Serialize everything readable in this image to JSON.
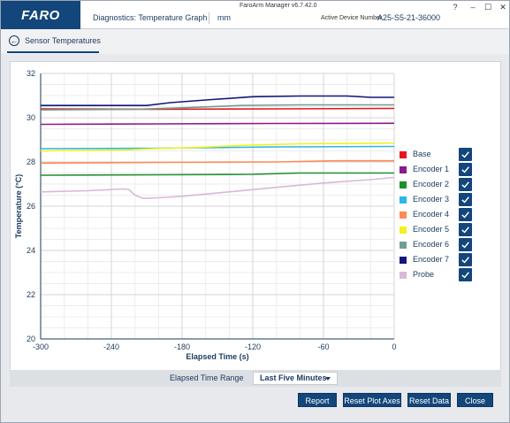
{
  "window": {
    "logo": "FARO",
    "app_title": "FaroArm Manager v6.7.42.0",
    "page_name": "Diagnostics: Temperature Graph",
    "unit": "mm",
    "device_label": "Active Device Number",
    "device_number": "A25-S5-21-36000",
    "help": "?",
    "minimize": "–",
    "maximize": "☐",
    "close": "✕"
  },
  "nav": {
    "back_icon": "←",
    "label": "Sensor Temperatures"
  },
  "range": {
    "label": "Elapsed Time Range",
    "selected": "Last Five Minutes"
  },
  "buttons": {
    "report": "Report",
    "reset_plot_axes": "Reset Plot Axes",
    "reset_data": "Reset Data",
    "close": "Close"
  },
  "legend": [
    {
      "label": "Base",
      "color": "#e8141c",
      "checked": true
    },
    {
      "label": "Encoder 1",
      "color": "#8b1a8b",
      "checked": true
    },
    {
      "label": "Encoder 2",
      "color": "#1f8f2c",
      "checked": true
    },
    {
      "label": "Encoder 3",
      "color": "#2ab8e8",
      "checked": true
    },
    {
      "label": "Encoder 4",
      "color": "#ff8a55",
      "checked": true
    },
    {
      "label": "Encoder 5",
      "color": "#f2f21e",
      "checked": true
    },
    {
      "label": "Encoder 6",
      "color": "#6e9e96",
      "checked": true
    },
    {
      "label": "Encoder 7",
      "color": "#16167a",
      "checked": true
    },
    {
      "label": "Probe",
      "color": "#d9b8d9",
      "checked": true
    }
  ],
  "chart_data": {
    "type": "line",
    "xlabel": "Elapsed Time (s)",
    "ylabel": "Temperature (°C)",
    "xlim": [
      -300,
      0
    ],
    "ylim": [
      20,
      32
    ],
    "xticks": [
      -300,
      -240,
      -180,
      -120,
      -60,
      0
    ],
    "yticks": [
      20,
      22,
      24,
      26,
      28,
      30,
      32
    ],
    "grid": true,
    "legend_position": "right",
    "series": [
      {
        "name": "Base",
        "color": "#e8141c",
        "points": [
          [
            -300,
            30.4
          ],
          [
            -200,
            30.38
          ],
          [
            -100,
            30.4
          ],
          [
            0,
            30.42
          ]
        ]
      },
      {
        "name": "Encoder 1",
        "color": "#8b1a8b",
        "points": [
          [
            -300,
            29.7
          ],
          [
            -200,
            29.72
          ],
          [
            -100,
            29.74
          ],
          [
            0,
            29.75
          ]
        ]
      },
      {
        "name": "Encoder 2",
        "color": "#1f8f2c",
        "points": [
          [
            -300,
            27.4
          ],
          [
            -200,
            27.42
          ],
          [
            -120,
            27.44
          ],
          [
            -80,
            27.5
          ],
          [
            0,
            27.5
          ]
        ]
      },
      {
        "name": "Encoder 3",
        "color": "#2ab8e8",
        "points": [
          [
            -300,
            28.6
          ],
          [
            -200,
            28.62
          ],
          [
            -100,
            28.68
          ],
          [
            0,
            28.7
          ]
        ]
      },
      {
        "name": "Encoder 4",
        "color": "#ff8a55",
        "points": [
          [
            -300,
            27.95
          ],
          [
            -200,
            27.98
          ],
          [
            -100,
            28.0
          ],
          [
            -50,
            28.05
          ],
          [
            0,
            28.05
          ]
        ]
      },
      {
        "name": "Encoder 5",
        "color": "#f2f21e",
        "points": [
          [
            -300,
            28.5
          ],
          [
            -225,
            28.55
          ],
          [
            -205,
            28.6
          ],
          [
            -170,
            28.65
          ],
          [
            -130,
            28.75
          ],
          [
            -80,
            28.82
          ],
          [
            0,
            28.85
          ]
        ]
      },
      {
        "name": "Encoder 6",
        "color": "#6e9e96",
        "points": [
          [
            -300,
            30.35
          ],
          [
            -220,
            30.38
          ],
          [
            -180,
            30.45
          ],
          [
            -130,
            30.55
          ],
          [
            -80,
            30.58
          ],
          [
            0,
            30.58
          ]
        ]
      },
      {
        "name": "Encoder 7",
        "color": "#16167a",
        "points": [
          [
            -300,
            30.55
          ],
          [
            -210,
            30.55
          ],
          [
            -190,
            30.68
          ],
          [
            -160,
            30.8
          ],
          [
            -120,
            30.95
          ],
          [
            -80,
            30.98
          ],
          [
            -40,
            30.98
          ],
          [
            -20,
            30.92
          ],
          [
            0,
            30.92
          ]
        ]
      },
      {
        "name": "Probe",
        "color": "#d9b8d9",
        "points": [
          [
            -300,
            26.65
          ],
          [
            -260,
            26.7
          ],
          [
            -230,
            26.78
          ],
          [
            -225,
            26.75
          ],
          [
            -220,
            26.5
          ],
          [
            -213,
            26.35
          ],
          [
            -200,
            26.38
          ],
          [
            -180,
            26.45
          ],
          [
            -140,
            26.65
          ],
          [
            -100,
            26.85
          ],
          [
            -60,
            27.05
          ],
          [
            -20,
            27.2
          ],
          [
            0,
            27.3
          ]
        ]
      }
    ]
  }
}
